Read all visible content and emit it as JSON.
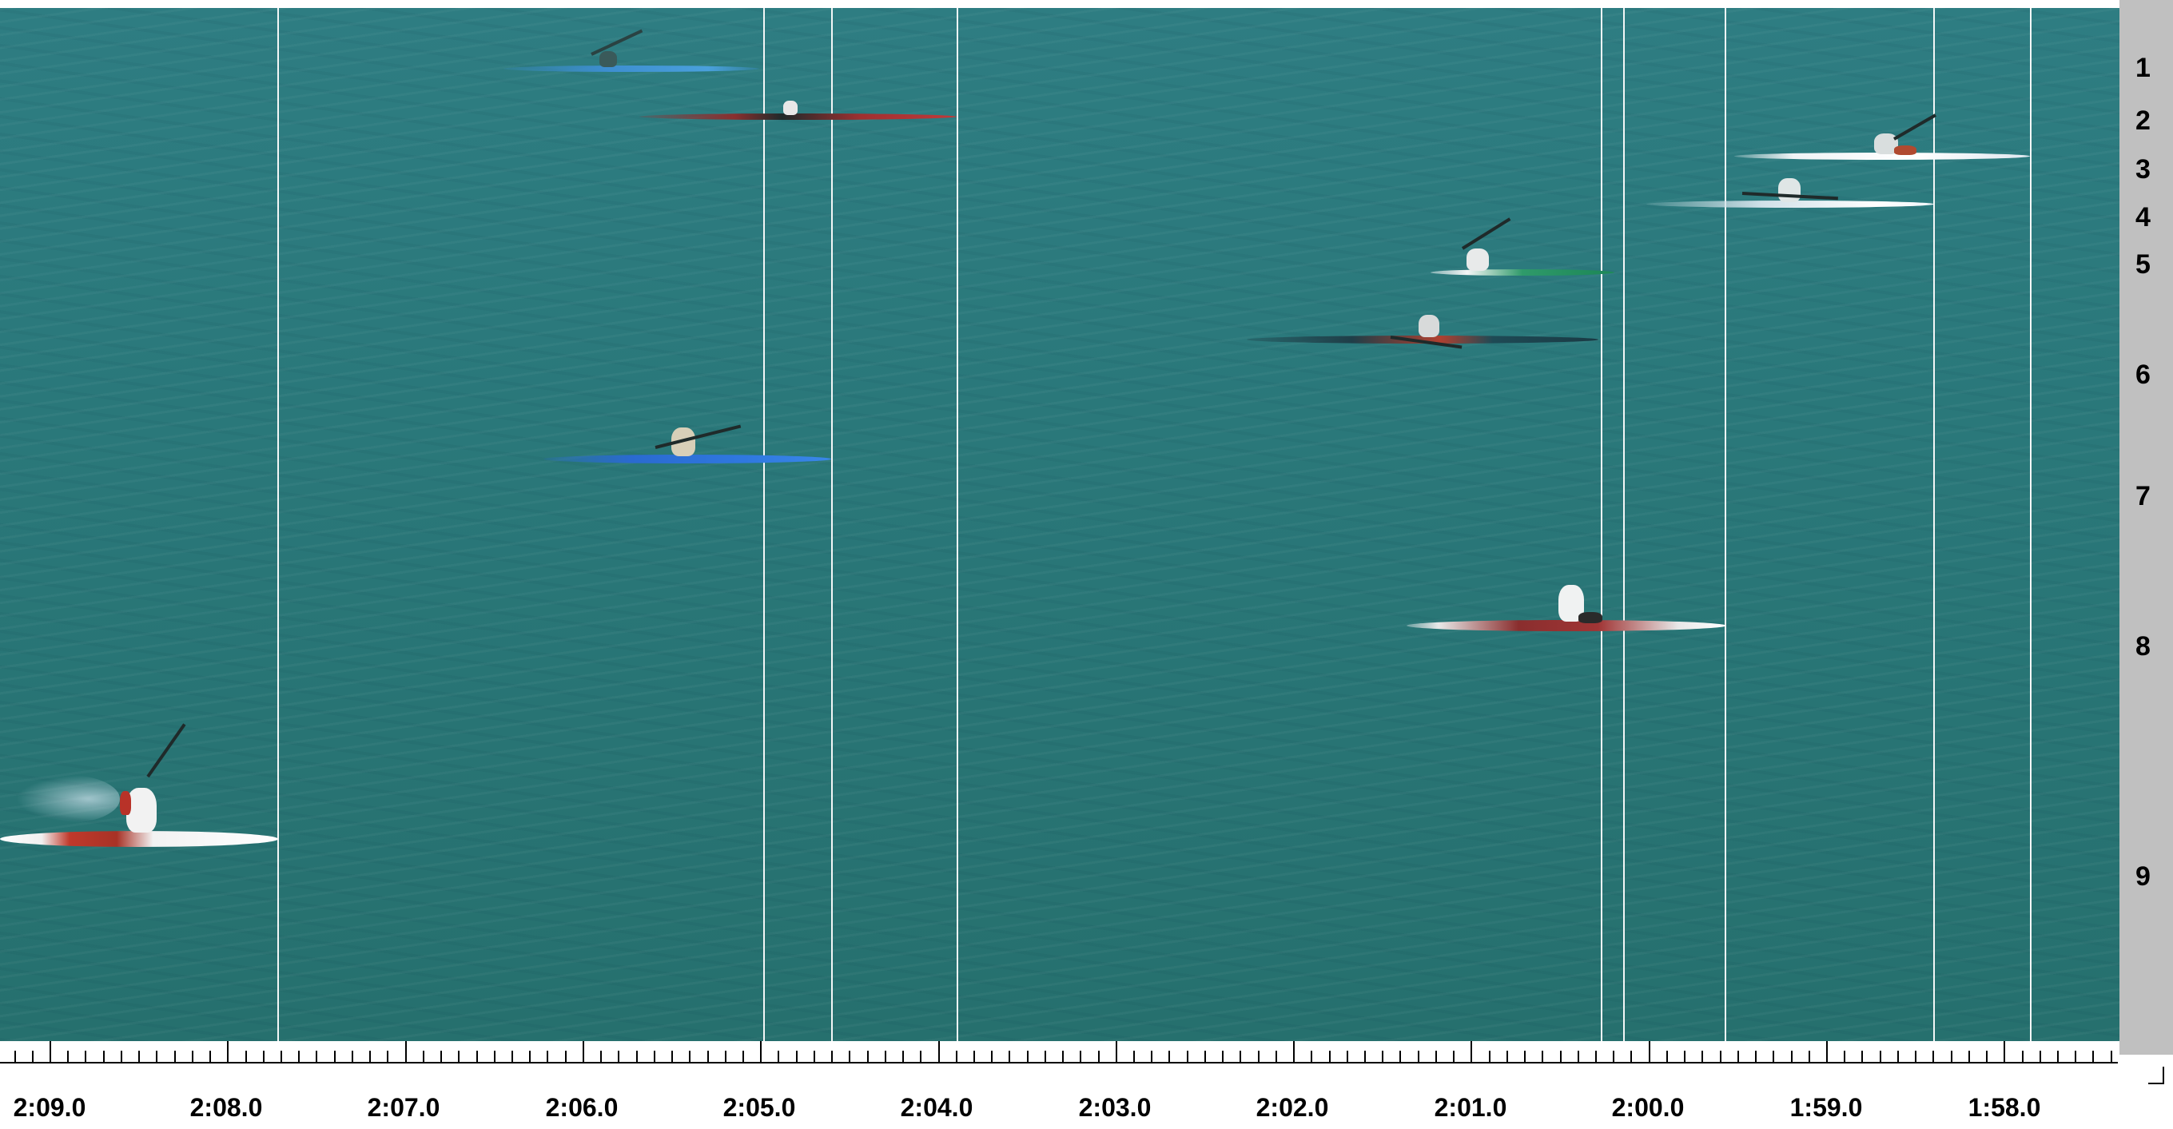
{
  "lane_numbers": [
    "1",
    "2",
    "3",
    "4",
    "5",
    "6",
    "7",
    "8",
    "9"
  ],
  "time_scale": {
    "labels": [
      "2:09.0",
      "2:08.0",
      "2:07.0",
      "2:06.0",
      "2:05.0",
      "2:04.0",
      "2:03.0",
      "2:02.0",
      "2:01.0",
      "2:00.0",
      "1:59.0",
      "1:58.0"
    ]
  },
  "colors": {
    "water": "#2a787a",
    "timeline": "#f4f7f7",
    "lane_panel": "#c0c0c0"
  }
}
